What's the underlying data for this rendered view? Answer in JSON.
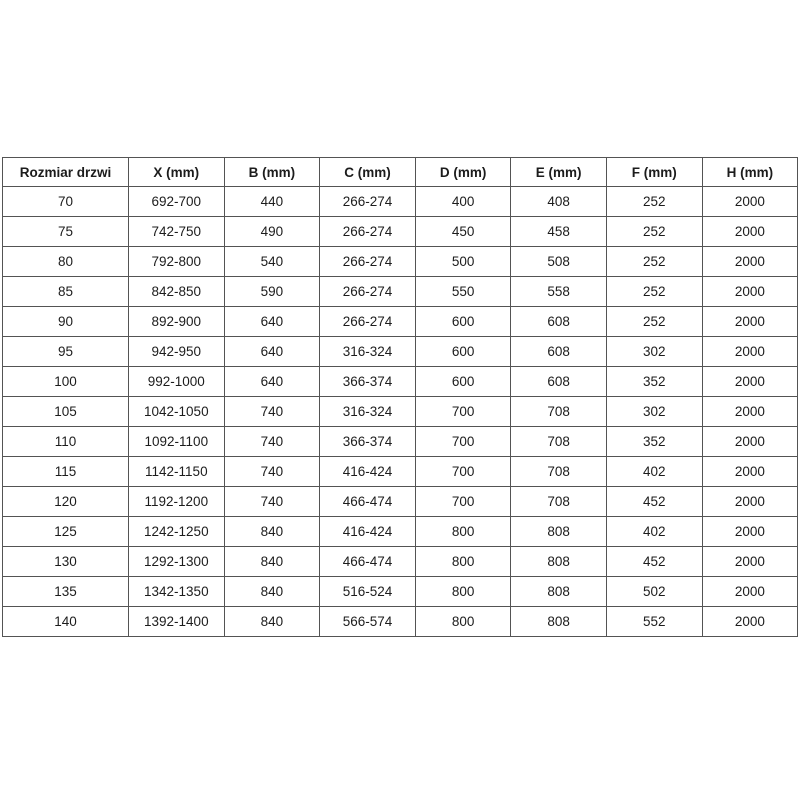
{
  "table": {
    "name": "shower-door-size-chart",
    "headers": [
      "Rozmiar drzwi",
      "X (mm)",
      "B (mm)",
      "C (mm)",
      "D (mm)",
      "E (mm)",
      "F (mm)",
      "H (mm)"
    ],
    "rows": [
      [
        "70",
        "692-700",
        "440",
        "266-274",
        "400",
        "408",
        "252",
        "2000"
      ],
      [
        "75",
        "742-750",
        "490",
        "266-274",
        "450",
        "458",
        "252",
        "2000"
      ],
      [
        "80",
        "792-800",
        "540",
        "266-274",
        "500",
        "508",
        "252",
        "2000"
      ],
      [
        "85",
        "842-850",
        "590",
        "266-274",
        "550",
        "558",
        "252",
        "2000"
      ],
      [
        "90",
        "892-900",
        "640",
        "266-274",
        "600",
        "608",
        "252",
        "2000"
      ],
      [
        "95",
        "942-950",
        "640",
        "316-324",
        "600",
        "608",
        "302",
        "2000"
      ],
      [
        "100",
        "992-1000",
        "640",
        "366-374",
        "600",
        "608",
        "352",
        "2000"
      ],
      [
        "105",
        "1042-1050",
        "740",
        "316-324",
        "700",
        "708",
        "302",
        "2000"
      ],
      [
        "110",
        "1092-1100",
        "740",
        "366-374",
        "700",
        "708",
        "352",
        "2000"
      ],
      [
        "115",
        "1142-1150",
        "740",
        "416-424",
        "700",
        "708",
        "402",
        "2000"
      ],
      [
        "120",
        "1192-1200",
        "740",
        "466-474",
        "700",
        "708",
        "452",
        "2000"
      ],
      [
        "125",
        "1242-1250",
        "840",
        "416-424",
        "800",
        "808",
        "402",
        "2000"
      ],
      [
        "130",
        "1292-1300",
        "840",
        "466-474",
        "800",
        "808",
        "452",
        "2000"
      ],
      [
        "135",
        "1342-1350",
        "840",
        "516-524",
        "800",
        "808",
        "502",
        "2000"
      ],
      [
        "140",
        "1392-1400",
        "840",
        "566-574",
        "800",
        "808",
        "552",
        "2000"
      ]
    ],
    "colors": {
      "border": "#545454",
      "text": "#1c1c1c",
      "background": "#ffffff"
    }
  }
}
